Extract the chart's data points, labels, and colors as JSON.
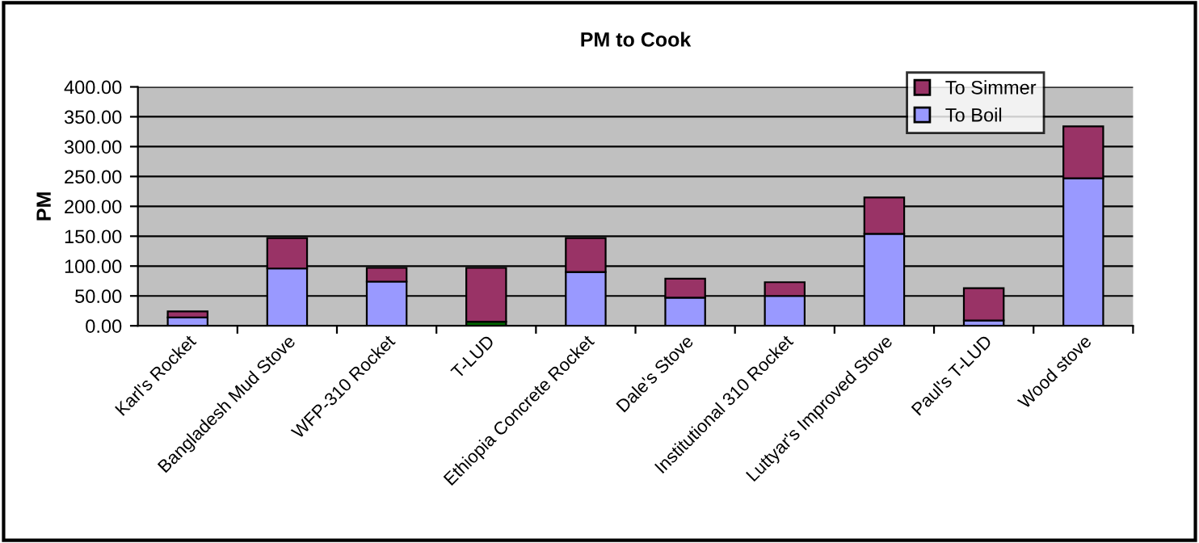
{
  "chart_data": {
    "type": "bar",
    "title": "PM to Cook",
    "ylabel": "PM",
    "stacked": true,
    "categories": [
      "Karl's Rocket",
      "Bangladesh Mud Stove",
      "WFP-310 Rocket",
      "T-LUD",
      "Ethiopia Concrete Rocket",
      "Dale's Stove",
      "Institutional 310 Rocket",
      "Luttyar's Improved Stove",
      "Paul's T-LUD",
      "Wood stove"
    ],
    "series": [
      {
        "name": "To Boil",
        "color": "#9999ff",
        "colors": [
          "#9999ff",
          "#9999ff",
          "#9999ff",
          "#006600",
          "#9999ff",
          "#9999ff",
          "#9999ff",
          "#9999ff",
          "#9999ff",
          "#9999ff"
        ],
        "values": [
          14,
          96,
          74,
          7,
          90,
          47,
          50,
          154,
          9,
          247
        ]
      },
      {
        "name": "To Simmer",
        "color": "#993366",
        "values": [
          10,
          51,
          23,
          90,
          57,
          32,
          23,
          61,
          54,
          87
        ]
      }
    ],
    "ylim": [
      0,
      400
    ],
    "yticks": [
      {
        "value": 0,
        "label": "0.00"
      },
      {
        "value": 50,
        "label": "50.00"
      },
      {
        "value": 100,
        "label": "100.00"
      },
      {
        "value": 150,
        "label": "150.00"
      },
      {
        "value": 200,
        "label": "200.00"
      },
      {
        "value": 250,
        "label": "250.00"
      },
      {
        "value": 300,
        "label": "300.00"
      },
      {
        "value": 350,
        "label": "350.00"
      },
      {
        "value": 400,
        "label": "400.00"
      }
    ],
    "grid": "y",
    "legend": "top right"
  }
}
